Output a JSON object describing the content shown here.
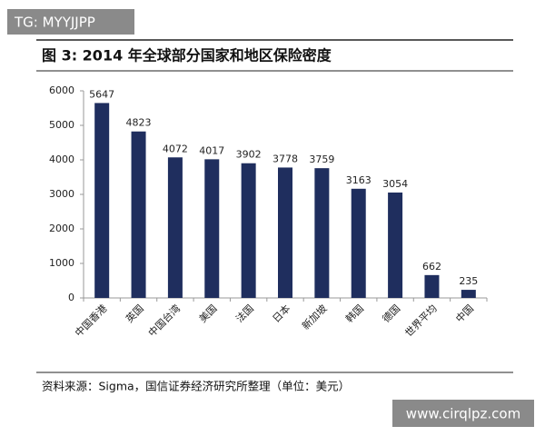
{
  "chart_data": {
    "type": "bar",
    "title": "图 3: 2014 年全球部分国家和地区保险密度",
    "categories": [
      "中国香港",
      "英国",
      "中国台湾",
      "美国",
      "法国",
      "日本",
      "新加坡",
      "韩国",
      "德国",
      "世界平均",
      "中国"
    ],
    "values": [
      5647,
      4823,
      4072,
      4017,
      3902,
      3778,
      3759,
      3163,
      3054,
      662,
      235
    ],
    "color": "#1f2e5e",
    "ylim": [
      0,
      6000
    ],
    "yticks": [
      0,
      1000,
      2000,
      3000,
      4000,
      5000,
      6000
    ],
    "grid": false,
    "source": "资料来源：Sigma，国信证券经济研究所整理（单位：美元）"
  },
  "watermarks": [
    "TG: MYYJJPP",
    "www.cirqlpz.com"
  ]
}
